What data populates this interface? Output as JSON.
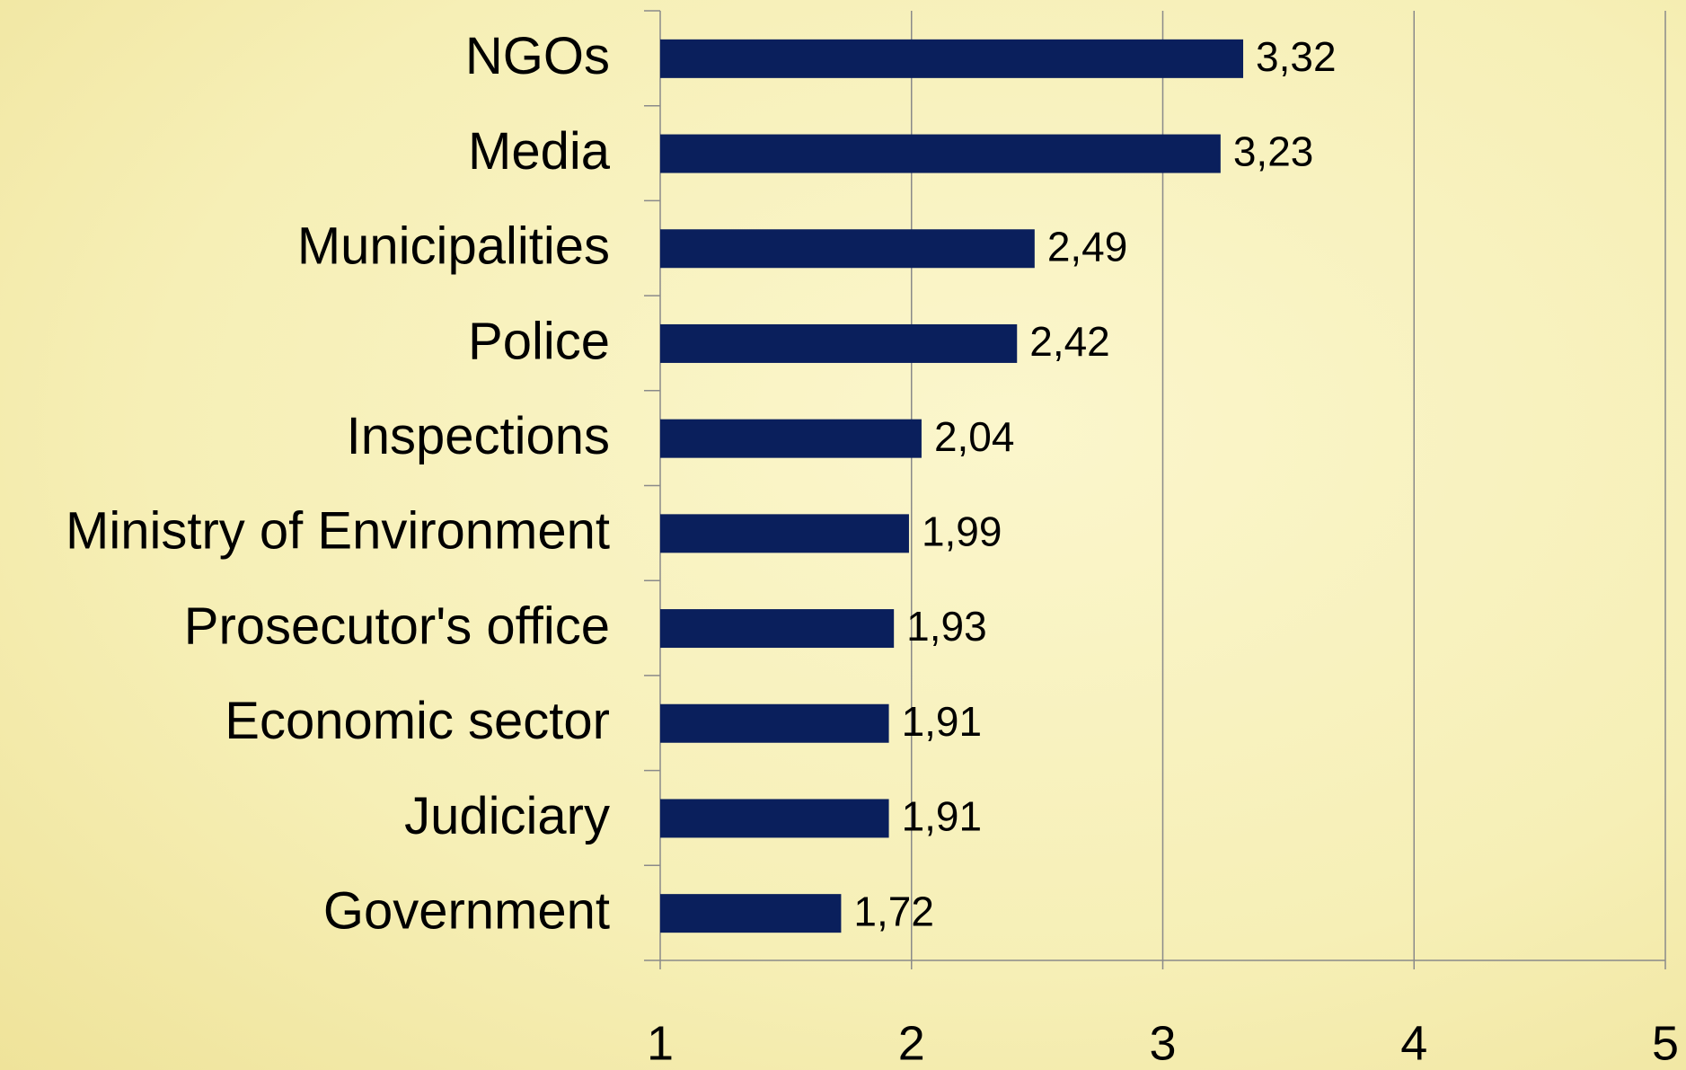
{
  "chart_data": {
    "type": "hbar",
    "categories": [
      "NGOs",
      "Media",
      "Municipalities",
      "Police",
      "Inspections",
      "Ministry of Environment",
      "Prosecutor's office",
      "Economic sector",
      "Judiciary",
      "Government"
    ],
    "values": [
      3.32,
      3.23,
      2.49,
      2.42,
      2.04,
      1.99,
      1.93,
      1.91,
      1.91,
      1.72
    ],
    "value_labels": [
      "3,32",
      "3,23",
      "2,49",
      "2,42",
      "2,04",
      "1,99",
      "1,93",
      "1,91",
      "1,91",
      "1,72"
    ],
    "color": "#0a1f5c",
    "xlim": [
      1,
      5
    ],
    "xticks": [
      1,
      2,
      3,
      4,
      5
    ],
    "grid": true
  }
}
